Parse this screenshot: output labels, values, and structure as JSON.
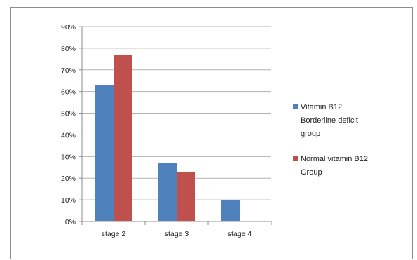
{
  "chart_data": {
    "type": "bar",
    "categories": [
      "stage 2",
      "stage 3",
      "stage 4"
    ],
    "series": [
      {
        "name": "Vitamin B12 Borderline deficit group",
        "legend_lines": [
          "Vitamin B12",
          "Borderline deficit",
          "group"
        ],
        "values": [
          63,
          27,
          10
        ],
        "color": "#4f81bd"
      },
      {
        "name": "Normal vitamin B12 Group",
        "legend_lines": [
          "Normal vitamin B12",
          "Group"
        ],
        "values": [
          77,
          23,
          0
        ],
        "color": "#c0504d"
      }
    ],
    "ylim": [
      0,
      90
    ],
    "yticks": [
      0,
      10,
      20,
      30,
      40,
      50,
      60,
      70,
      80,
      90
    ],
    "ytick_suffix": "%",
    "grid": true,
    "legend_position": "right"
  }
}
